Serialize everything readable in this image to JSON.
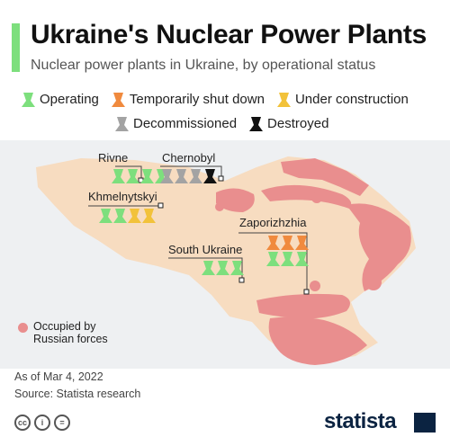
{
  "header": {
    "title": "Ukraine's Nuclear Power Plants",
    "subtitle": "Nuclear power plants in Ukraine, by operational status"
  },
  "legend": {
    "operating": "Operating",
    "temporarily_shut_down": "Temporarily shut down",
    "under_construction": "Under construction",
    "decommissioned": "Decommissioned",
    "destroyed": "Destroyed"
  },
  "colors": {
    "operating": "#7ddf7d",
    "temporarily_shut_down": "#f08a3e",
    "under_construction": "#f2c23a",
    "decommissioned": "#a3a3a3",
    "destroyed": "#111111",
    "occupied": "#e98e8e",
    "territory": "#f7dcc0",
    "background": "#eef0f2",
    "accent": "#7ddf7d"
  },
  "plants": [
    {
      "name": "Rivne",
      "reactors": [
        "operating",
        "operating",
        "operating",
        "operating"
      ]
    },
    {
      "name": "Chernobyl",
      "reactors": [
        "decommissioned",
        "decommissioned",
        "decommissioned",
        "destroyed"
      ]
    },
    {
      "name": "Khmelnytskyi",
      "reactors": [
        "operating",
        "operating",
        "under_construction",
        "under_construction"
      ]
    },
    {
      "name": "Zaporizhzhia",
      "reactors": [
        "temporarily_shut_down",
        "temporarily_shut_down",
        "temporarily_shut_down",
        "operating",
        "operating",
        "operating"
      ]
    },
    {
      "name": "South Ukraine",
      "reactors": [
        "operating",
        "operating",
        "operating"
      ]
    }
  ],
  "occupied_legend": {
    "line1": "Occupied by",
    "line2": "Russian forces"
  },
  "footer": {
    "date": "As of Mar 4, 2022",
    "source": "Source: Statista research",
    "brand": "statista",
    "license_icons": [
      "cc-icon",
      "attribution-icon",
      "no-derivatives-icon"
    ]
  }
}
